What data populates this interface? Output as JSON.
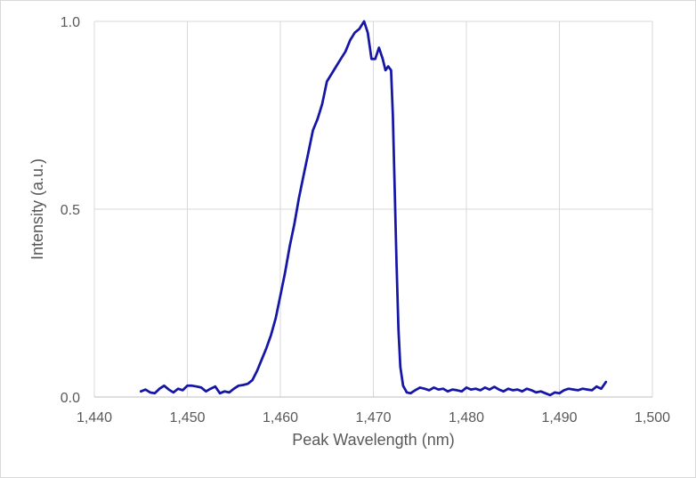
{
  "chart_data": {
    "type": "line",
    "title": "",
    "xlabel": "Peak Wavelength (nm)",
    "ylabel": "Intensity (a.u.)",
    "xlim": [
      1440,
      1500
    ],
    "ylim": [
      0,
      1
    ],
    "x_ticks": [
      1440,
      1450,
      1460,
      1470,
      1480,
      1490,
      1500
    ],
    "x_tick_labels": [
      "1,440",
      "1,450",
      "1,460",
      "1,470",
      "1,480",
      "1,490",
      "1,500"
    ],
    "y_ticks": [
      0,
      0.5,
      1
    ],
    "y_tick_labels": [
      "0.0",
      "0.5",
      "1.0"
    ],
    "grid": "vertical",
    "legend": "none",
    "series": [
      {
        "color": "#1515a6",
        "points": [
          [
            1445.0,
            0.015
          ],
          [
            1445.5,
            0.02
          ],
          [
            1446.0,
            0.012
          ],
          [
            1446.5,
            0.01
          ],
          [
            1447.0,
            0.022
          ],
          [
            1447.5,
            0.03
          ],
          [
            1448.0,
            0.02
          ],
          [
            1448.5,
            0.012
          ],
          [
            1449.0,
            0.022
          ],
          [
            1449.5,
            0.018
          ],
          [
            1450.0,
            0.03
          ],
          [
            1450.5,
            0.03
          ],
          [
            1451.0,
            0.028
          ],
          [
            1451.5,
            0.025
          ],
          [
            1452.0,
            0.015
          ],
          [
            1452.5,
            0.022
          ],
          [
            1453.0,
            0.028
          ],
          [
            1453.5,
            0.01
          ],
          [
            1454.0,
            0.015
          ],
          [
            1454.5,
            0.012
          ],
          [
            1455.0,
            0.022
          ],
          [
            1455.5,
            0.03
          ],
          [
            1456.0,
            0.032
          ],
          [
            1456.5,
            0.035
          ],
          [
            1457.0,
            0.045
          ],
          [
            1457.5,
            0.07
          ],
          [
            1458.0,
            0.1
          ],
          [
            1458.5,
            0.13
          ],
          [
            1459.0,
            0.165
          ],
          [
            1459.5,
            0.21
          ],
          [
            1460.0,
            0.27
          ],
          [
            1460.5,
            0.33
          ],
          [
            1461.0,
            0.4
          ],
          [
            1461.5,
            0.46
          ],
          [
            1462.0,
            0.53
          ],
          [
            1462.5,
            0.59
          ],
          [
            1463.0,
            0.65
          ],
          [
            1463.5,
            0.71
          ],
          [
            1464.0,
            0.74
          ],
          [
            1464.5,
            0.78
          ],
          [
            1465.0,
            0.84
          ],
          [
            1465.5,
            0.86
          ],
          [
            1466.0,
            0.88
          ],
          [
            1466.5,
            0.9
          ],
          [
            1467.0,
            0.92
          ],
          [
            1467.5,
            0.95
          ],
          [
            1468.0,
            0.97
          ],
          [
            1468.5,
            0.98
          ],
          [
            1469.0,
            1.0
          ],
          [
            1469.4,
            0.97
          ],
          [
            1469.8,
            0.9
          ],
          [
            1470.2,
            0.9
          ],
          [
            1470.6,
            0.93
          ],
          [
            1471.0,
            0.9
          ],
          [
            1471.3,
            0.87
          ],
          [
            1471.6,
            0.88
          ],
          [
            1471.9,
            0.87
          ],
          [
            1472.1,
            0.75
          ],
          [
            1472.3,
            0.55
          ],
          [
            1472.5,
            0.35
          ],
          [
            1472.7,
            0.18
          ],
          [
            1472.9,
            0.08
          ],
          [
            1473.2,
            0.03
          ],
          [
            1473.6,
            0.012
          ],
          [
            1474.0,
            0.01
          ],
          [
            1474.5,
            0.018
          ],
          [
            1475.0,
            0.025
          ],
          [
            1475.5,
            0.022
          ],
          [
            1476.0,
            0.018
          ],
          [
            1476.5,
            0.025
          ],
          [
            1477.0,
            0.02
          ],
          [
            1477.5,
            0.022
          ],
          [
            1478.0,
            0.015
          ],
          [
            1478.5,
            0.02
          ],
          [
            1479.0,
            0.018
          ],
          [
            1479.5,
            0.015
          ],
          [
            1480.0,
            0.025
          ],
          [
            1480.5,
            0.02
          ],
          [
            1481.0,
            0.022
          ],
          [
            1481.5,
            0.018
          ],
          [
            1482.0,
            0.025
          ],
          [
            1482.5,
            0.02
          ],
          [
            1483.0,
            0.027
          ],
          [
            1483.5,
            0.02
          ],
          [
            1484.0,
            0.015
          ],
          [
            1484.5,
            0.022
          ],
          [
            1485.0,
            0.018
          ],
          [
            1485.5,
            0.02
          ],
          [
            1486.0,
            0.015
          ],
          [
            1486.5,
            0.022
          ],
          [
            1487.0,
            0.018
          ],
          [
            1487.5,
            0.012
          ],
          [
            1488.0,
            0.015
          ],
          [
            1488.5,
            0.01
          ],
          [
            1489.0,
            0.005
          ],
          [
            1489.5,
            0.012
          ],
          [
            1490.0,
            0.01
          ],
          [
            1490.5,
            0.018
          ],
          [
            1491.0,
            0.022
          ],
          [
            1491.5,
            0.02
          ],
          [
            1492.0,
            0.018
          ],
          [
            1492.5,
            0.022
          ],
          [
            1493.0,
            0.02
          ],
          [
            1493.5,
            0.018
          ],
          [
            1494.0,
            0.028
          ],
          [
            1494.5,
            0.022
          ],
          [
            1495.0,
            0.04
          ]
        ]
      }
    ]
  }
}
